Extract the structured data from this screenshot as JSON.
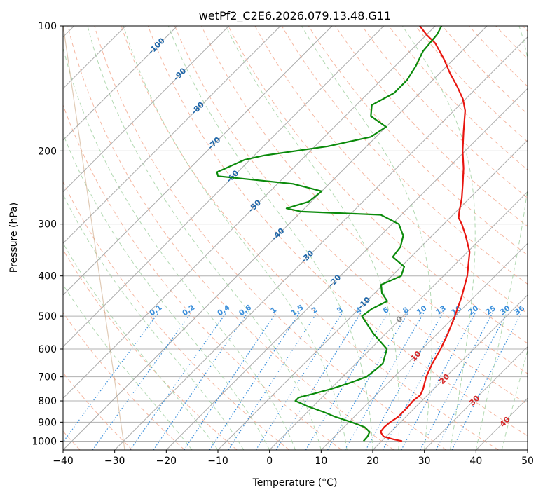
{
  "chart_data": {
    "type": "skew-t log-p",
    "title": "wetPf2_C2E6.2026.079.13.48.G11",
    "xlabel": "Temperature (°C)",
    "ylabel": "Pressure (hPa)",
    "xlim": [
      -40,
      50
    ],
    "ylim_hpa": [
      1050,
      100
    ],
    "x_ticks": [
      "−40",
      "−30",
      "−20",
      "−10",
      "0",
      "10",
      "20",
      "30",
      "40",
      "50"
    ],
    "y_ticks": [
      "100",
      "200",
      "300",
      "400",
      "500",
      "600",
      "700",
      "800",
      "900",
      "1000"
    ],
    "grid": true,
    "colors": {
      "temperature": "#e8150f",
      "dewpoint": "#0a8a0a",
      "isotherm": "#9e9e9e",
      "dry_adiabat": "#f2a58a",
      "moist_adiabat": "#9fd09f",
      "mixing_ratio": "#3b8fdb",
      "isotherm_label": "#1f66a8",
      "zero_contour": "#808080",
      "positive_label": "#d62728",
      "curved_reference": "#c8a07a"
    },
    "temperature_profile": [
      [
        1000,
        24
      ],
      [
        990,
        22
      ],
      [
        975,
        19.5
      ],
      [
        950,
        18
      ],
      [
        925,
        17.8
      ],
      [
        900,
        18
      ],
      [
        875,
        18.5
      ],
      [
        850,
        18.5
      ],
      [
        825,
        18.5
      ],
      [
        800,
        18.3
      ],
      [
        775,
        18.6
      ],
      [
        750,
        18.0
      ],
      [
        700,
        16.2
      ],
      [
        650,
        14.8
      ],
      [
        600,
        13.6
      ],
      [
        550,
        12.0
      ],
      [
        500,
        10.0
      ],
      [
        450,
        7.6
      ],
      [
        400,
        4.6
      ],
      [
        350,
        0.4
      ],
      [
        320,
        -3.5
      ],
      [
        300,
        -6.5
      ],
      [
        290,
        -8.3
      ],
      [
        280,
        -9.4
      ],
      [
        260,
        -11.5
      ],
      [
        240,
        -14.1
      ],
      [
        220,
        -17.0
      ],
      [
        200,
        -20.5
      ],
      [
        180,
        -24.0
      ],
      [
        160,
        -27.8
      ],
      [
        150,
        -30.5
      ],
      [
        140,
        -34.0
      ],
      [
        130,
        -38.0
      ],
      [
        120,
        -42.0
      ],
      [
        110,
        -46.7
      ],
      [
        105,
        -50.0
      ],
      [
        100,
        -53.0
      ]
    ],
    "dewpoint_profile": [
      [
        1000,
        16.5
      ],
      [
        975,
        16.4
      ],
      [
        950,
        15.9
      ],
      [
        925,
        14.0
      ],
      [
        900,
        10.5
      ],
      [
        875,
        6.5
      ],
      [
        850,
        3.0
      ],
      [
        825,
        -1.0
      ],
      [
        800,
        -4.5
      ],
      [
        785,
        -4.5
      ],
      [
        770,
        -2.5
      ],
      [
        750,
        0.0
      ],
      [
        725,
        2.5
      ],
      [
        700,
        4.6
      ],
      [
        675,
        5.0
      ],
      [
        650,
        5.2
      ],
      [
        600,
        3.2
      ],
      [
        550,
        -2.5
      ],
      [
        500,
        -8.0
      ],
      [
        480,
        -7.5
      ],
      [
        460,
        -6.0
      ],
      [
        440,
        -8.6
      ],
      [
        420,
        -10.4
      ],
      [
        400,
        -8.2
      ],
      [
        380,
        -9.4
      ],
      [
        360,
        -13.5
      ],
      [
        340,
        -14.0
      ],
      [
        320,
        -15.6
      ],
      [
        300,
        -18.7
      ],
      [
        285,
        -24.0
      ],
      [
        280,
        -40.0
      ],
      [
        275,
        -43.5
      ],
      [
        265,
        -40.5
      ],
      [
        250,
        -40.0
      ],
      [
        240,
        -47.0
      ],
      [
        230,
        -63.0
      ],
      [
        225,
        -64.0
      ],
      [
        210,
        -61.0
      ],
      [
        205,
        -58.0
      ],
      [
        195,
        -47.5
      ],
      [
        185,
        -41.0
      ],
      [
        175,
        -40.0
      ],
      [
        165,
        -45.0
      ],
      [
        155,
        -47.0
      ],
      [
        145,
        -45.0
      ],
      [
        135,
        -45.0
      ],
      [
        125,
        -46.0
      ],
      [
        115,
        -47.5
      ],
      [
        105,
        -48.0
      ],
      [
        100,
        -48.8
      ]
    ],
    "isotherm_labels": [
      "-100",
      "-90",
      "-80",
      "-70",
      "-60",
      "-50",
      "-40",
      "-30",
      "-20",
      "-10"
    ],
    "mixing_ratio_labels": [
      "0.1",
      "0.2",
      "0.4",
      "0.6",
      "1",
      "1.5",
      "2",
      "3",
      "4",
      "6",
      "8",
      "10",
      "13",
      "16",
      "20",
      "25",
      "30",
      "36"
    ],
    "zero_label": "0",
    "positive_labels": [
      "10",
      "20",
      "30",
      "40"
    ]
  }
}
